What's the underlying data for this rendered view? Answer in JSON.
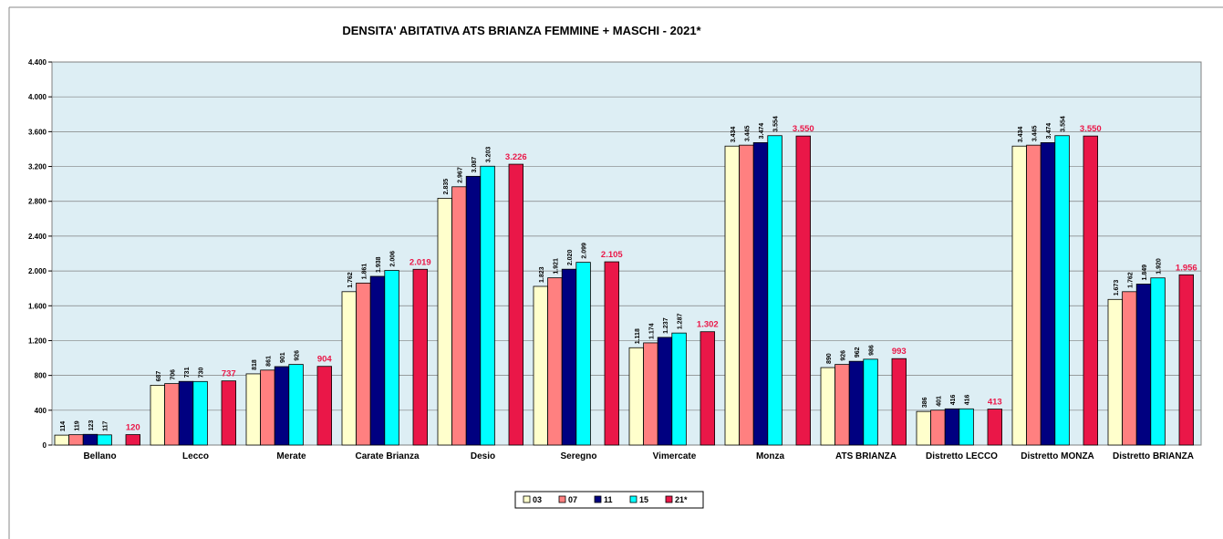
{
  "chart_data": {
    "type": "bar",
    "title": "DENSITA' ABITATIVA ATS BRIANZA  FEMMINE +  MASCHI - 2021*",
    "categories": [
      "Bellano",
      "Lecco",
      "Merate",
      "Carate Brianza",
      "Desio",
      "Seregno",
      "Vimercate",
      "Monza",
      "ATS BRIANZA",
      "Distretto LECCO",
      "Distretto MONZA",
      "Distretto BRIANZA"
    ],
    "series": [
      {
        "name": "03",
        "color": "#ffffcc",
        "values": [
          114,
          687,
          818,
          1762,
          2835,
          1823,
          1118,
          3434,
          890,
          386,
          3434,
          1673
        ],
        "value_labels": [
          "114",
          "687",
          "818",
          "1.762",
          "2.835",
          "1.823",
          "1.118",
          "3.434",
          "890",
          "386",
          "3.434",
          "1.673"
        ]
      },
      {
        "name": "07",
        "color": "#ff8080",
        "values": [
          119,
          706,
          861,
          1861,
          2967,
          1921,
          1174,
          3445,
          926,
          401,
          3445,
          1762
        ],
        "value_labels": [
          "119",
          "706",
          "861",
          "1.861",
          "2.967",
          "1.921",
          "1.174",
          "3.445",
          "926",
          "401",
          "3.445",
          "1.762"
        ]
      },
      {
        "name": "11",
        "color": "#000080",
        "values": [
          123,
          731,
          901,
          1938,
          3087,
          2020,
          1237,
          3474,
          962,
          416,
          3474,
          1849
        ],
        "value_labels": [
          "123",
          "731",
          "901",
          "1.938",
          "3.087",
          "2.020",
          "1.237",
          "3.474",
          "962",
          "416",
          "3.474",
          "1.849"
        ]
      },
      {
        "name": "15",
        "color": "#00ffff",
        "values": [
          117,
          730,
          926,
          2006,
          3203,
          2099,
          1287,
          3554,
          986,
          416,
          3554,
          1920
        ],
        "value_labels": [
          "117",
          "730",
          "926",
          "2.006",
          "3.203",
          "2.099",
          "1.287",
          "3.554",
          "986",
          "416",
          "3.554",
          "1.920"
        ]
      },
      {
        "name": "21*",
        "color": "#ea1748",
        "values": [
          120,
          737,
          904,
          2019,
          3226,
          2105,
          1302,
          3550,
          993,
          413,
          3550,
          1956
        ],
        "value_labels": [
          "120",
          "737",
          "904",
          "2.019",
          "3.226",
          "2.105",
          "1.302",
          "3.550",
          "993",
          "413",
          "3.550",
          "1.956"
        ]
      }
    ],
    "ylim": [
      0,
      4400
    ],
    "yticks": [
      0,
      400,
      800,
      {
        "value": 1200,
        "label": "1.200"
      },
      {
        "value": 1600,
        "label": "1.600"
      },
      {
        "value": 2000,
        "label": "2.000"
      },
      {
        "value": 2400,
        "label": "2.400"
      },
      {
        "value": 2800,
        "label": "2.800"
      },
      {
        "value": 3200,
        "label": "3.200"
      },
      {
        "value": 3600,
        "label": "3.600"
      },
      {
        "value": 4000,
        "label": "4.000"
      },
      {
        "value": 4400,
        "label": "4.400"
      }
    ],
    "grid": true
  }
}
